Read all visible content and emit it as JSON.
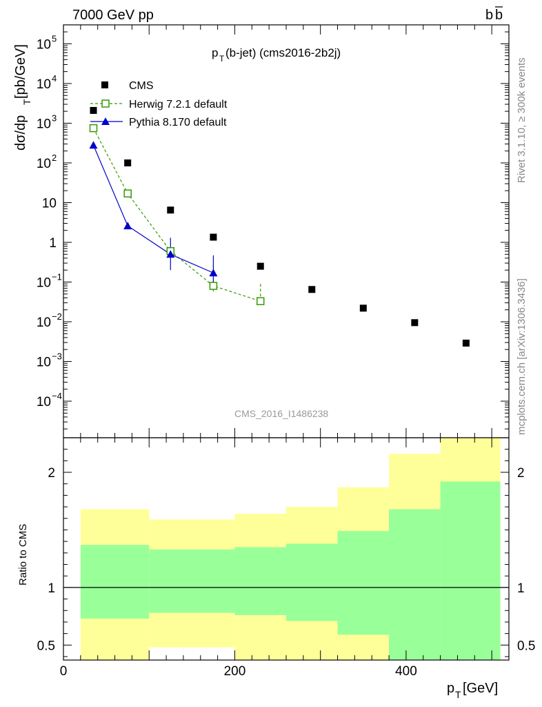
{
  "header": {
    "left": "7000 GeV pp",
    "right_base": "b",
    "right_bar": "b"
  },
  "side_labels": {
    "rivet": "Rivet 3.1.10, ≥ 300k events",
    "mcplots": "mcplots.cern.ch [arXiv:1306.3436]"
  },
  "chart_data": {
    "type": "scatter",
    "title_main": "p",
    "title_sub": "T",
    "title_rest": "(b-jet) (cms2016-2b2j)",
    "watermark": "CMS_2016_I1486238",
    "ylabel_parts": {
      "a": "dσ/dp",
      "sub": "T",
      "b": " [pb/GeV]"
    },
    "xlabel_parts": {
      "a": "p",
      "sub": "T",
      "b": " [GeV]"
    },
    "ratio_ylabel": "Ratio to CMS",
    "x_range": [
      0,
      520
    ],
    "y_log": true,
    "y_range": [
      1.2e-05,
      300000.0
    ],
    "ratio_range": [
      0.37,
      2.3
    ],
    "y_ticks": [
      {
        "v": 100000.0,
        "label": "10",
        "exp": "5"
      },
      {
        "v": 10000.0,
        "label": "10",
        "exp": "4"
      },
      {
        "v": 1000.0,
        "label": "10",
        "exp": "3"
      },
      {
        "v": 100,
        "label": "10",
        "exp": "2"
      },
      {
        "v": 10,
        "label": "10",
        "exp": ""
      },
      {
        "v": 1,
        "label": "1",
        "exp": ""
      },
      {
        "v": 0.1,
        "label": "10",
        "exp": "−1"
      },
      {
        "v": 0.01,
        "label": "10",
        "exp": "−2"
      },
      {
        "v": 0.001,
        "label": "10",
        "exp": "−3"
      },
      {
        "v": 0.0001,
        "label": "10",
        "exp": "−4"
      },
      {
        "v": 1e-05,
        "label": "10",
        "exp": "−5"
      }
    ],
    "x_ticks": [
      {
        "v": 0,
        "label": "0"
      },
      {
        "v": 200,
        "label": "200"
      },
      {
        "v": 400,
        "label": "400"
      }
    ],
    "ratio_ticks": [
      {
        "v": 0.5,
        "label": "0.5"
      },
      {
        "v": 1,
        "label": "1"
      },
      {
        "v": 2,
        "label": "2"
      }
    ],
    "series": [
      {
        "name": "CMS",
        "style": "data",
        "color": "#000000",
        "x": [
          35,
          75,
          125,
          175,
          230,
          290,
          350,
          410,
          470
        ],
        "y": [
          2100,
          100,
          6.5,
          1.35,
          0.25,
          0.065,
          0.022,
          0.0095,
          0.0029
        ]
      },
      {
        "name": "Herwig 7.2.1 default",
        "style": "dashed-open-square",
        "color": "#339900",
        "x": [
          35,
          75,
          125,
          175,
          230
        ],
        "y": [
          750,
          17,
          0.6,
          0.08,
          0.033
        ],
        "err_lo": [
          750,
          17,
          0.6,
          0.022,
          1e-06
        ],
        "err_hi": [
          750,
          17,
          0.6,
          0.2,
          0.065
        ]
      },
      {
        "name": "Pythia 8.170 default",
        "style": "solid-filled-triangle",
        "color": "#0000cc",
        "x": [
          35,
          75,
          125,
          175
        ],
        "y": [
          280,
          2.6,
          0.5,
          0.17
        ],
        "err_lo": [
          280,
          2.6,
          0.3,
          0.08
        ],
        "err_hi": [
          280,
          2.6,
          0.8,
          0.3
        ]
      }
    ],
    "ratio_bands": [
      {
        "x0": 20,
        "x1": 100,
        "yellow_lo": 0.37,
        "yellow_hi": 1.68,
        "green_lo": 0.73,
        "green_hi": 1.37
      },
      {
        "x0": 100,
        "x1": 200,
        "yellow_lo": 0.48,
        "yellow_hi": 1.59,
        "green_lo": 0.78,
        "green_hi": 1.33
      },
      {
        "x0": 200,
        "x1": 260,
        "yellow_lo": 0.37,
        "yellow_hi": 1.64,
        "green_lo": 0.76,
        "green_hi": 1.35
      },
      {
        "x0": 260,
        "x1": 320,
        "yellow_lo": 0.37,
        "yellow_hi": 1.7,
        "green_lo": 0.71,
        "green_hi": 1.38
      },
      {
        "x0": 320,
        "x1": 380,
        "yellow_lo": 0.37,
        "yellow_hi": 1.87,
        "green_lo": 0.59,
        "green_hi": 1.49
      },
      {
        "x0": 380,
        "x1": 440,
        "yellow_lo": 0.37,
        "yellow_hi": 2.16,
        "green_lo": 0.37,
        "green_hi": 1.68
      },
      {
        "x0": 440,
        "x1": 510,
        "yellow_lo": 0.37,
        "yellow_hi": 2.3,
        "green_lo": 0.37,
        "green_hi": 1.92
      }
    ],
    "legend_position": "top-left",
    "colors": {
      "yellow_band": "#ffff99",
      "green_band": "#99ff99"
    }
  }
}
